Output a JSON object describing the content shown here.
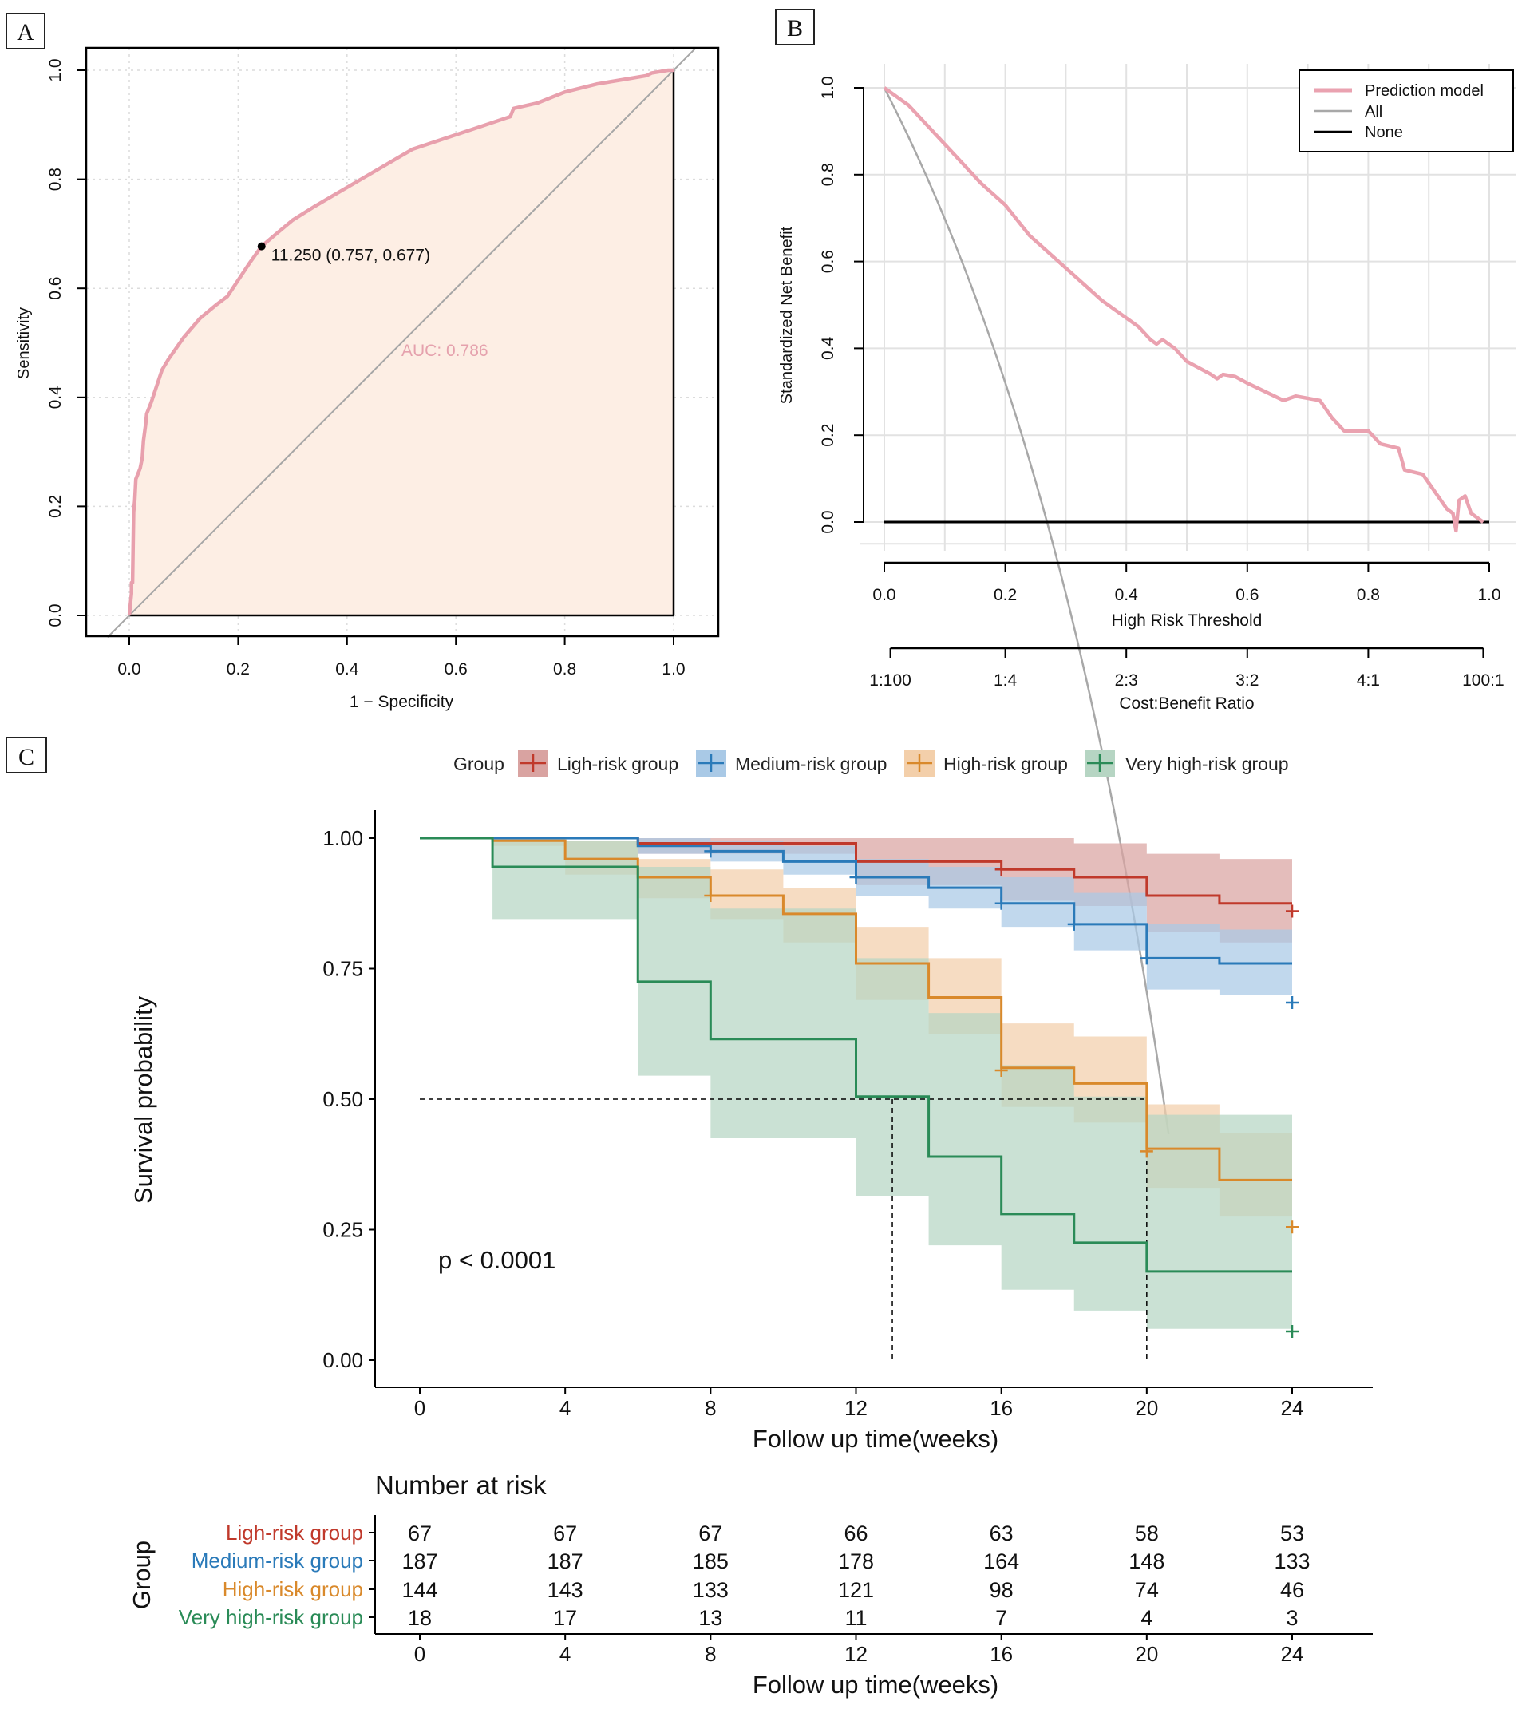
{
  "panels": {
    "a": "A",
    "b": "B",
    "c": "C"
  },
  "colors": {
    "roc_curve": "#e8a0ad",
    "roc_fill": "#fdeee4",
    "diag": "#a6a6a6",
    "grid": "#dcdcdc",
    "dca_model": "#eaa2b0",
    "dca_all": "#a8a8a8",
    "dca_none": "#000000",
    "low_risk": "#c0392b",
    "medium_risk": "#2a7ab9",
    "high_risk": "#d9892b",
    "very_high_risk": "#2a8b57",
    "low_risk_band": "#d9a3a1",
    "medium_risk_band": "#a9c9e6",
    "high_risk_band": "#f3cfaa",
    "very_high_risk_band": "#b6d5c3",
    "auc_text": "#e5a1ad"
  },
  "chart_data": [
    {
      "panel": "A",
      "type": "line",
      "xlabel": "1 − Specificity",
      "ylabel": "Sensitivity",
      "xlim": [
        0,
        1
      ],
      "ylim": [
        0,
        1
      ],
      "xticks": [
        "0.0",
        "0.2",
        "0.4",
        "0.6",
        "0.8",
        "1.0"
      ],
      "yticks": [
        "0.0",
        "0.2",
        "0.4",
        "0.6",
        "0.8",
        "1.0"
      ],
      "roc_points": [
        [
          0,
          0
        ],
        [
          0.004,
          0.04
        ],
        [
          0.004,
          0.06
        ],
        [
          0.006,
          0.06
        ],
        [
          0.008,
          0.19
        ],
        [
          0.01,
          0.21
        ],
        [
          0.012,
          0.25
        ],
        [
          0.02,
          0.27
        ],
        [
          0.024,
          0.29
        ],
        [
          0.026,
          0.32
        ],
        [
          0.03,
          0.35
        ],
        [
          0.032,
          0.37
        ],
        [
          0.04,
          0.39
        ],
        [
          0.05,
          0.42
        ],
        [
          0.06,
          0.45
        ],
        [
          0.072,
          0.47
        ],
        [
          0.1,
          0.51
        ],
        [
          0.13,
          0.545
        ],
        [
          0.16,
          0.57
        ],
        [
          0.18,
          0.585
        ],
        [
          0.2,
          0.615
        ],
        [
          0.22,
          0.645
        ],
        [
          0.243,
          0.677
        ],
        [
          0.27,
          0.7
        ],
        [
          0.3,
          0.725
        ],
        [
          0.34,
          0.75
        ],
        [
          0.4,
          0.785
        ],
        [
          0.46,
          0.82
        ],
        [
          0.52,
          0.855
        ],
        [
          0.58,
          0.875
        ],
        [
          0.64,
          0.895
        ],
        [
          0.7,
          0.915
        ],
        [
          0.706,
          0.93
        ],
        [
          0.75,
          0.94
        ],
        [
          0.8,
          0.96
        ],
        [
          0.86,
          0.975
        ],
        [
          0.92,
          0.985
        ],
        [
          0.95,
          0.99
        ],
        [
          0.96,
          0.995
        ],
        [
          0.99,
          1.0
        ],
        [
          1.0,
          1.0
        ]
      ],
      "cutoff_point": {
        "fpr": 0.243,
        "tpr": 0.677,
        "label": "11.250 (0.757, 0.677)"
      },
      "auc_label": "AUC: 0.786"
    },
    {
      "panel": "B",
      "type": "line",
      "xlabel": "High Risk Threshold",
      "ylabel": "Standardized Net Benefit",
      "second_axis_label": "Cost:Benefit Ratio",
      "xticks": [
        "0.0",
        "0.2",
        "0.4",
        "0.6",
        "0.8",
        "1.0"
      ],
      "yticks": [
        "0.0",
        "0.2",
        "0.4",
        "0.6",
        "0.8",
        "1.0"
      ],
      "cost_benefit_ticks": [
        {
          "at": 0.01,
          "label": "1:100"
        },
        {
          "at": 0.2,
          "label": "1:4"
        },
        {
          "at": 0.4,
          "label": "2:3"
        },
        {
          "at": 0.6,
          "label": "3:2"
        },
        {
          "at": 0.8,
          "label": "4:1"
        },
        {
          "at": 0.99,
          "label": "100:1"
        }
      ],
      "legend": [
        "Prediction model",
        "All",
        "None"
      ],
      "prevalence": 0.269,
      "model_points": [
        [
          0,
          1.0
        ],
        [
          0.04,
          0.96
        ],
        [
          0.08,
          0.9
        ],
        [
          0.12,
          0.84
        ],
        [
          0.16,
          0.78
        ],
        [
          0.2,
          0.73
        ],
        [
          0.24,
          0.66
        ],
        [
          0.28,
          0.61
        ],
        [
          0.32,
          0.56
        ],
        [
          0.36,
          0.51
        ],
        [
          0.4,
          0.47
        ],
        [
          0.42,
          0.45
        ],
        [
          0.44,
          0.42
        ],
        [
          0.45,
          0.41
        ],
        [
          0.46,
          0.42
        ],
        [
          0.48,
          0.4
        ],
        [
          0.5,
          0.37
        ],
        [
          0.54,
          0.34
        ],
        [
          0.55,
          0.33
        ],
        [
          0.56,
          0.34
        ],
        [
          0.58,
          0.335
        ],
        [
          0.6,
          0.32
        ],
        [
          0.63,
          0.3
        ],
        [
          0.66,
          0.28
        ],
        [
          0.68,
          0.29
        ],
        [
          0.72,
          0.28
        ],
        [
          0.74,
          0.24
        ],
        [
          0.76,
          0.21
        ],
        [
          0.8,
          0.21
        ],
        [
          0.82,
          0.18
        ],
        [
          0.85,
          0.17
        ],
        [
          0.86,
          0.12
        ],
        [
          0.89,
          0.11
        ],
        [
          0.91,
          0.07
        ],
        [
          0.93,
          0.03
        ],
        [
          0.94,
          0.02
        ],
        [
          0.945,
          -0.02
        ],
        [
          0.95,
          0.05
        ],
        [
          0.96,
          0.06
        ],
        [
          0.97,
          0.02
        ],
        [
          0.99,
          0.0
        ]
      ],
      "all_range": [
        0,
        0.47
      ],
      "none_value": 0
    },
    {
      "panel": "C",
      "type": "line",
      "title": "",
      "xlabel": "Follow up time(weeks)",
      "ylabel": "Survival probability",
      "xlim": [
        0,
        24
      ],
      "ylim": [
        0,
        1
      ],
      "xticks": [
        "0",
        "4",
        "8",
        "12",
        "16",
        "20",
        "24"
      ],
      "yticks": [
        "0.00",
        "0.25",
        "0.50",
        "0.75",
        "1.00"
      ],
      "legend_title": "Group",
      "pvalue": "p < 0.0001",
      "median_lines": [
        13,
        20
      ],
      "series": [
        {
          "name": "Ligh-risk group",
          "key": "low_risk",
          "steps": [
            [
              0,
              1.0
            ],
            [
              6,
              0.99
            ],
            [
              12,
              0.955
            ],
            [
              16,
              0.94
            ],
            [
              18,
              0.925
            ],
            [
              20,
              0.89
            ],
            [
              22,
              0.875
            ],
            [
              24,
              0.875
            ]
          ],
          "upper": [
            [
              0,
              1.0
            ],
            [
              12,
              1.0
            ],
            [
              16,
              1.0
            ],
            [
              18,
              0.99
            ],
            [
              20,
              0.97
            ],
            [
              22,
              0.96
            ],
            [
              24,
              0.96
            ]
          ],
          "lower": [
            [
              0,
              1.0
            ],
            [
              6,
              0.97
            ],
            [
              12,
              0.91
            ],
            [
              16,
              0.88
            ],
            [
              18,
              0.87
            ],
            [
              20,
              0.82
            ],
            [
              22,
              0.8
            ],
            [
              24,
              0.8
            ]
          ],
          "censors": [
            [
              16,
              0.94
            ],
            [
              24,
              0.86
            ]
          ]
        },
        {
          "name": "Medium-risk group",
          "key": "medium_risk",
          "steps": [
            [
              0,
              1.0
            ],
            [
              6,
              0.985
            ],
            [
              8,
              0.975
            ],
            [
              10,
              0.955
            ],
            [
              12,
              0.925
            ],
            [
              14,
              0.905
            ],
            [
              16,
              0.875
            ],
            [
              18,
              0.835
            ],
            [
              20,
              0.77
            ],
            [
              22,
              0.76
            ],
            [
              24,
              0.76
            ]
          ],
          "upper": [
            [
              0,
              1.0
            ],
            [
              8,
              0.995
            ],
            [
              10,
              0.985
            ],
            [
              12,
              0.96
            ],
            [
              14,
              0.945
            ],
            [
              16,
              0.925
            ],
            [
              18,
              0.895
            ],
            [
              20,
              0.835
            ],
            [
              22,
              0.825
            ],
            [
              24,
              0.825
            ]
          ],
          "lower": [
            [
              0,
              1.0
            ],
            [
              6,
              0.97
            ],
            [
              8,
              0.955
            ],
            [
              10,
              0.93
            ],
            [
              12,
              0.89
            ],
            [
              14,
              0.865
            ],
            [
              16,
              0.83
            ],
            [
              18,
              0.785
            ],
            [
              20,
              0.71
            ],
            [
              22,
              0.7
            ],
            [
              24,
              0.7
            ]
          ],
          "censors": [
            [
              8,
              0.975
            ],
            [
              12,
              0.925
            ],
            [
              16,
              0.875
            ],
            [
              18,
              0.835
            ],
            [
              20,
              0.77
            ],
            [
              24,
              0.685
            ]
          ]
        },
        {
          "name": "High-risk group",
          "key": "high_risk",
          "steps": [
            [
              0,
              1.0
            ],
            [
              2,
              0.995
            ],
            [
              4,
              0.96
            ],
            [
              6,
              0.925
            ],
            [
              8,
              0.89
            ],
            [
              10,
              0.855
            ],
            [
              12,
              0.76
            ],
            [
              14,
              0.695
            ],
            [
              16,
              0.56
            ],
            [
              18,
              0.53
            ],
            [
              20,
              0.405
            ],
            [
              22,
              0.345
            ],
            [
              24,
              0.345
            ]
          ],
          "upper": [
            [
              0,
              1.0
            ],
            [
              2,
              1.0
            ],
            [
              4,
              0.995
            ],
            [
              6,
              0.96
            ],
            [
              8,
              0.94
            ],
            [
              10,
              0.905
            ],
            [
              12,
              0.83
            ],
            [
              14,
              0.77
            ],
            [
              16,
              0.645
            ],
            [
              18,
              0.62
            ],
            [
              20,
              0.49
            ],
            [
              22,
              0.435
            ],
            [
              24,
              0.435
            ]
          ],
          "lower": [
            [
              0,
              1.0
            ],
            [
              2,
              0.985
            ],
            [
              4,
              0.93
            ],
            [
              6,
              0.885
            ],
            [
              8,
              0.845
            ],
            [
              10,
              0.8
            ],
            [
              12,
              0.69
            ],
            [
              14,
              0.625
            ],
            [
              16,
              0.485
            ],
            [
              18,
              0.455
            ],
            [
              20,
              0.33
            ],
            [
              22,
              0.275
            ],
            [
              24,
              0.275
            ]
          ],
          "censors": [
            [
              8,
              0.89
            ],
            [
              16,
              0.555
            ],
            [
              20,
              0.4
            ],
            [
              24,
              0.255
            ]
          ]
        },
        {
          "name": "Very high-risk group",
          "key": "very_high_risk",
          "steps": [
            [
              0,
              1.0
            ],
            [
              2,
              0.945
            ],
            [
              6,
              0.725
            ],
            [
              8,
              0.615
            ],
            [
              12,
              0.505
            ],
            [
              14,
              0.39
            ],
            [
              16,
              0.28
            ],
            [
              18,
              0.225
            ],
            [
              20,
              0.17
            ],
            [
              22,
              0.17
            ],
            [
              24,
              0.17
            ]
          ],
          "upper": [
            [
              0,
              1.0
            ],
            [
              2,
              0.995
            ],
            [
              6,
              0.945
            ],
            [
              8,
              0.865
            ],
            [
              12,
              0.77
            ],
            [
              14,
              0.665
            ],
            [
              16,
              0.565
            ],
            [
              18,
              0.505
            ],
            [
              20,
              0.47
            ],
            [
              24,
              0.47
            ]
          ],
          "lower": [
            [
              0,
              1.0
            ],
            [
              2,
              0.845
            ],
            [
              6,
              0.545
            ],
            [
              8,
              0.425
            ],
            [
              12,
              0.315
            ],
            [
              14,
              0.22
            ],
            [
              16,
              0.135
            ],
            [
              18,
              0.095
            ],
            [
              20,
              0.06
            ],
            [
              24,
              0.06
            ]
          ],
          "censors": [
            [
              24,
              0.055
            ]
          ]
        }
      ],
      "risk_table": {
        "title": "Number at risk",
        "ylabel": "Group",
        "xlabel": "Follow up time(weeks)",
        "times": [
          "0",
          "4",
          "8",
          "12",
          "16",
          "20",
          "24"
        ],
        "rows": [
          {
            "label": "Ligh-risk  group",
            "key": "low_risk",
            "values": [
              "67",
              "67",
              "67",
              "66",
              "63",
              "58",
              "53"
            ]
          },
          {
            "label": "Medium-risk  group",
            "key": "medium_risk",
            "values": [
              "187",
              "187",
              "185",
              "178",
              "164",
              "148",
              "133"
            ]
          },
          {
            "label": "High-risk  group",
            "key": "high_risk",
            "values": [
              "144",
              "143",
              "133",
              "121",
              "98",
              "74",
              "46"
            ]
          },
          {
            "label": "Very high-risk  group",
            "key": "very_high_risk",
            "values": [
              "18",
              "17",
              "13",
              "11",
              "7",
              "4",
              "3"
            ]
          }
        ]
      }
    }
  ]
}
